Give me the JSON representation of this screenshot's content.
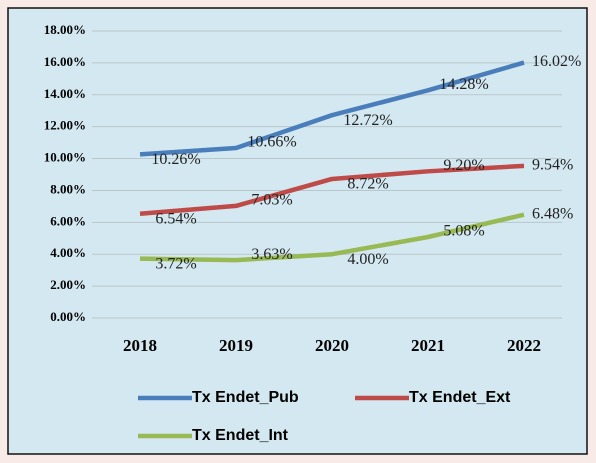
{
  "chart_data": {
    "type": "line",
    "categories": [
      "2018",
      "2019",
      "2020",
      "2021",
      "2022"
    ],
    "series": [
      {
        "name": "Tx Endet_Pub",
        "color": "#4a7ebb",
        "values": [
          10.26,
          10.66,
          12.72,
          14.28,
          16.02
        ],
        "value_labels": [
          "10.26%",
          "10.66%",
          "12.72%",
          "14.28%",
          "16.02%"
        ]
      },
      {
        "name": "Tx Endet_Ext",
        "color": "#be4b48",
        "values": [
          6.54,
          7.03,
          8.72,
          9.2,
          9.54
        ],
        "value_labels": [
          "6.54%",
          "7.03%",
          "8.72%",
          "9.20%",
          "9.54%"
        ]
      },
      {
        "name": "Tx Endet_Int",
        "color": "#98b954",
        "values": [
          3.72,
          3.63,
          4.0,
          5.08,
          6.48
        ],
        "value_labels": [
          "3.72%",
          "3.63%",
          "4.00%",
          "5.08%",
          "6.48%"
        ]
      }
    ],
    "ylim": [
      0,
      18
    ],
    "yticks": [
      {
        "value": 0,
        "label": "0.00%"
      },
      {
        "value": 2,
        "label": "2.00%"
      },
      {
        "value": 4,
        "label": "4.00%"
      },
      {
        "value": 6,
        "label": "6.00%"
      },
      {
        "value": 8,
        "label": "8.00%"
      },
      {
        "value": 10,
        "label": "10.00%"
      },
      {
        "value": 12,
        "label": "12.00%"
      },
      {
        "value": 14,
        "label": "14.00%"
      },
      {
        "value": 16,
        "label": "16.00%"
      },
      {
        "value": 18,
        "label": "18.00%"
      }
    ],
    "grid": true,
    "legend": "bottom"
  }
}
